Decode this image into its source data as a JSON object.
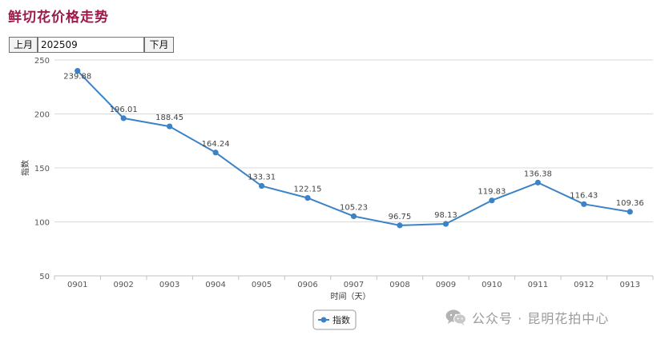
{
  "page": {
    "title": "鲜切花价格走势"
  },
  "controls": {
    "prev_label": "上月",
    "next_label": "下月",
    "month_value": "202509"
  },
  "chart_data": {
    "type": "line",
    "x": [
      "0901",
      "0902",
      "0903",
      "0904",
      "0905",
      "0906",
      "0907",
      "0908",
      "0909",
      "0910",
      "0911",
      "0912",
      "0913"
    ],
    "series": [
      {
        "name": "指数",
        "values": [
          239.88,
          196.01,
          188.45,
          164.24,
          133.31,
          122.15,
          105.23,
          96.75,
          98.13,
          119.83,
          136.38,
          116.43,
          109.36
        ],
        "labels": [
          "239.88",
          "196.01",
          "188.45",
          "164.24",
          "133.31",
          "122.15",
          "105.23",
          "96.75",
          "98.13",
          "119.83",
          "136.38",
          "116.43",
          "109.36"
        ],
        "color": "#3b82c6"
      }
    ],
    "yticks": [
      50,
      100,
      150,
      200,
      250
    ],
    "ytick_labels": [
      "50",
      "100",
      "150",
      "200",
      "250"
    ],
    "ylim": [
      50,
      250
    ],
    "xlabel": "时间（天）",
    "ylabel": "指数",
    "legend": "bottom-center",
    "grid": true
  },
  "watermark": {
    "text": "公众号 · 昆明花拍中心",
    "icon": "wechat-icon"
  },
  "colors": {
    "title": "#9b1b4b",
    "line": "#3b82c6",
    "grid": "#d9d9d9",
    "axis_text": "#555555"
  }
}
